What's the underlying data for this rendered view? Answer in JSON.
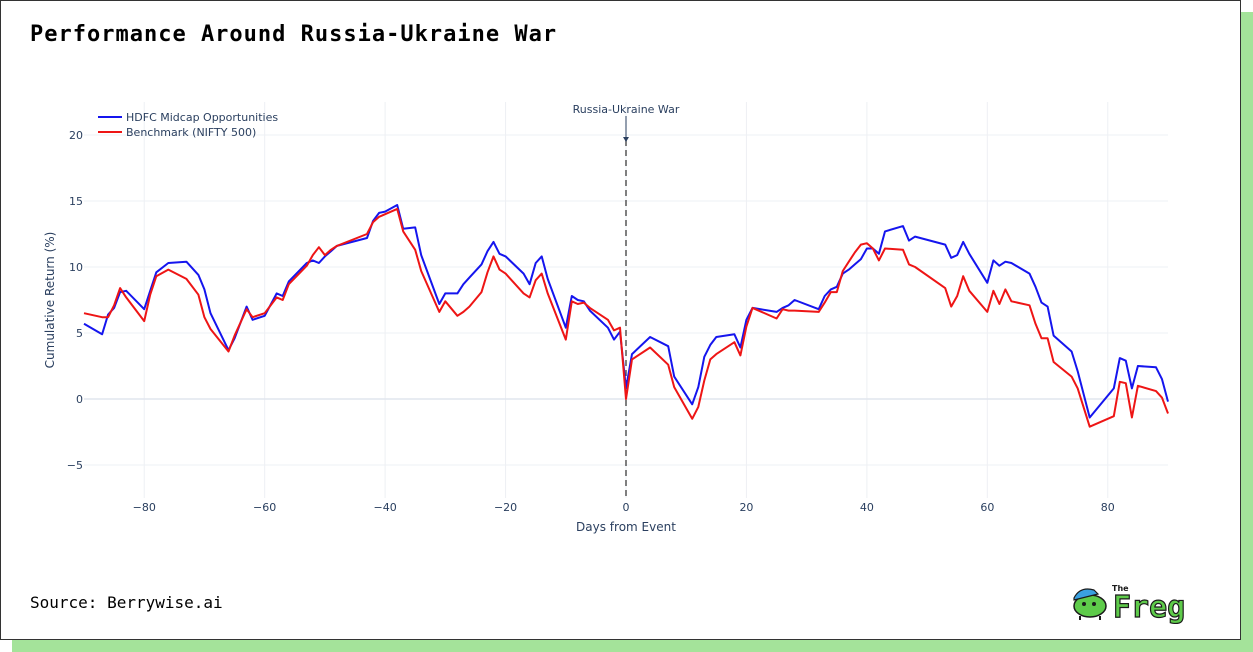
{
  "page": {
    "title": "Performance Around Russia-Ukraine War",
    "source": "Source: Berrywise.ai"
  },
  "logo": {
    "small_text": "The",
    "name": "Freg",
    "icon": "frog-mascot-icon"
  },
  "colors": {
    "fund": "#1515ee",
    "benchmark": "#ee1515",
    "grid": "#eef0f4",
    "axis_text": "#2a3f5f",
    "event_line": "#555555",
    "shadow": "#a4e39a"
  },
  "chart_data": {
    "type": "line",
    "title": "Performance Around Russia-Ukraine War",
    "xlabel": "Days from Event",
    "ylabel": "Cumulative Return (%)",
    "xlim": [
      -90,
      90
    ],
    "ylim": [
      -7.5,
      22.5
    ],
    "xticks": [
      -80,
      -60,
      -40,
      -20,
      0,
      20,
      40,
      60,
      80
    ],
    "xtick_labels": [
      "−80",
      "−60",
      "−40",
      "−20",
      "0",
      "20",
      "40",
      "60",
      "80"
    ],
    "yticks": [
      -5,
      0,
      5,
      10,
      15,
      20
    ],
    "ytick_labels": [
      "−5",
      "0",
      "5",
      "10",
      "15",
      "20"
    ],
    "grid": true,
    "legend_position": "top-left",
    "annotation": {
      "text": "Russia-Ukraine War",
      "x": 0
    },
    "series": [
      {
        "name": "HDFC Midcap Opportunities",
        "x": [
          -90,
          -87,
          -86,
          -85,
          -84,
          -83,
          -80,
          -79,
          -78,
          -76,
          -73,
          -71,
          -70,
          -69,
          -66,
          -65,
          -63,
          -62,
          -60,
          -58,
          -57,
          -56,
          -53,
          -52,
          -51,
          -50,
          -49,
          -48,
          -43,
          -42,
          -41,
          -40,
          -38,
          -37,
          -35,
          -34,
          -31,
          -30,
          -28,
          -27,
          -26,
          -24,
          -23,
          -22,
          -21,
          -20,
          -17,
          -16,
          -15,
          -14,
          -13,
          -10,
          -9,
          -8,
          -7,
          -6,
          -3,
          -2,
          -1,
          0,
          1,
          4,
          7,
          8,
          11,
          12,
          13,
          14,
          15,
          18,
          19,
          20,
          21,
          25,
          26,
          27,
          28,
          32,
          33,
          34,
          35,
          36,
          37,
          38,
          39,
          40,
          41,
          42,
          43,
          46,
          47,
          48,
          53,
          54,
          55,
          56,
          57,
          60,
          61,
          62,
          63,
          64,
          67,
          68,
          69,
          70,
          71,
          74,
          75,
          77,
          81,
          82,
          83,
          84,
          85,
          88,
          89,
          90
        ],
        "values": [
          5.7,
          4.9,
          6.4,
          6.9,
          8.1,
          8.2,
          6.8,
          8.2,
          9.6,
          10.3,
          10.4,
          9.4,
          8.3,
          6.5,
          3.7,
          4.6,
          7.0,
          6.0,
          6.3,
          8.0,
          7.8,
          8.9,
          10.3,
          10.5,
          10.3,
          10.8,
          11.2,
          11.6,
          12.2,
          13.5,
          14.1,
          14.2,
          14.7,
          12.9,
          13.0,
          10.9,
          7.2,
          8.0,
          8.0,
          8.7,
          9.2,
          10.2,
          11.2,
          11.9,
          11.0,
          10.8,
          9.5,
          8.7,
          10.3,
          10.8,
          9.1,
          5.4,
          7.8,
          7.5,
          7.4,
          6.7,
          5.4,
          4.5,
          5.1,
          0.8,
          3.4,
          4.7,
          4.0,
          1.7,
          -0.4,
          0.9,
          3.2,
          4.1,
          4.7,
          4.9,
          3.9,
          6.0,
          6.9,
          6.6,
          6.9,
          7.1,
          7.5,
          6.8,
          7.8,
          8.3,
          8.5,
          9.5,
          9.8,
          10.2,
          10.6,
          11.4,
          11.4,
          11.0,
          12.7,
          13.1,
          12.0,
          12.3,
          11.7,
          10.7,
          10.9,
          11.9,
          11.0,
          8.8,
          10.5,
          10.1,
          10.4,
          10.3,
          9.5,
          8.5,
          7.3,
          7.0,
          4.8,
          3.6,
          2.1,
          -1.4,
          0.8,
          3.1,
          2.9,
          0.8,
          2.5,
          2.4,
          1.5,
          -0.2
        ]
      },
      {
        "name": "Benchmark (NIFTY 500)",
        "x": [
          -90,
          -87,
          -86,
          -85,
          -84,
          -83,
          -80,
          -79,
          -78,
          -76,
          -73,
          -71,
          -70,
          -69,
          -66,
          -65,
          -63,
          -62,
          -60,
          -58,
          -57,
          -56,
          -53,
          -52,
          -51,
          -50,
          -49,
          -48,
          -43,
          -42,
          -41,
          -40,
          -38,
          -37,
          -35,
          -34,
          -31,
          -30,
          -28,
          -27,
          -26,
          -24,
          -23,
          -22,
          -21,
          -20,
          -17,
          -16,
          -15,
          -14,
          -13,
          -10,
          -9,
          -8,
          -7,
          -6,
          -3,
          -2,
          -1,
          0,
          1,
          4,
          7,
          8,
          11,
          12,
          13,
          14,
          15,
          18,
          19,
          20,
          21,
          25,
          26,
          27,
          28,
          32,
          33,
          34,
          35,
          36,
          37,
          38,
          39,
          40,
          41,
          42,
          43,
          46,
          47,
          48,
          53,
          54,
          55,
          56,
          57,
          60,
          61,
          62,
          63,
          64,
          67,
          68,
          69,
          70,
          71,
          74,
          75,
          77,
          81,
          82,
          83,
          84,
          85,
          88,
          89,
          90
        ],
        "values": [
          6.5,
          6.2,
          6.2,
          7.1,
          8.4,
          7.7,
          5.9,
          7.9,
          9.3,
          9.8,
          9.1,
          7.9,
          6.2,
          5.3,
          3.6,
          4.8,
          6.8,
          6.2,
          6.5,
          7.7,
          7.5,
          8.7,
          10.1,
          10.9,
          11.5,
          10.9,
          11.3,
          11.6,
          12.5,
          13.4,
          13.8,
          14.0,
          14.4,
          12.7,
          11.3,
          9.7,
          6.6,
          7.4,
          6.3,
          6.6,
          7.0,
          8.1,
          9.6,
          10.8,
          9.8,
          9.5,
          8.0,
          7.7,
          9.0,
          9.5,
          8.0,
          4.5,
          7.4,
          7.2,
          7.3,
          6.9,
          6.0,
          5.2,
          5.4,
          0.0,
          3.0,
          3.9,
          2.6,
          0.9,
          -1.5,
          -0.6,
          1.4,
          3.0,
          3.4,
          4.3,
          3.3,
          5.5,
          6.9,
          6.1,
          6.8,
          6.7,
          6.7,
          6.6,
          7.3,
          8.1,
          8.1,
          9.7,
          10.4,
          11.1,
          11.7,
          11.8,
          11.4,
          10.5,
          11.4,
          11.3,
          10.2,
          10.0,
          8.4,
          7.0,
          7.8,
          9.3,
          8.2,
          6.6,
          8.2,
          7.2,
          8.3,
          7.4,
          7.1,
          5.7,
          4.6,
          4.6,
          2.8,
          1.7,
          0.8,
          -2.1,
          -1.3,
          1.3,
          1.2,
          -1.4,
          1.0,
          0.6,
          0.1,
          -1.1
        ]
      }
    ]
  }
}
